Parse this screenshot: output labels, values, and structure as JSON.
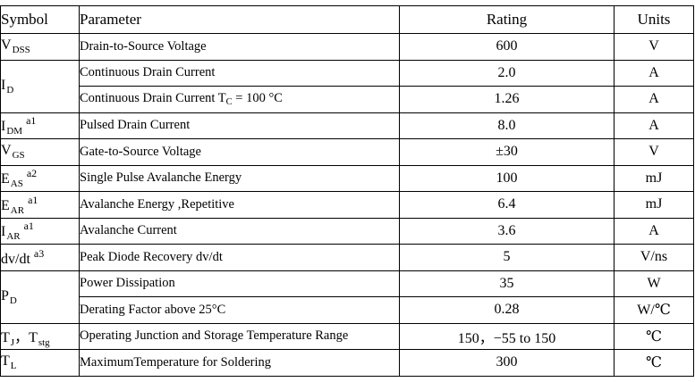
{
  "table": {
    "headers": {
      "symbol": "Symbol",
      "parameter": "Parameter",
      "rating": "Rating",
      "units": "Units"
    },
    "rows": [
      {
        "sym": "V",
        "sub": "DSS",
        "sup": "",
        "param": "Drain-to-Source Voltage",
        "rating": "600",
        "unit": "V"
      },
      {
        "sym": "I",
        "sub": "D",
        "sup": "",
        "param": "Continuous Drain Current",
        "rating": "2.0",
        "unit": "A"
      },
      {
        "param_pre": "Continuous Drain Current T",
        "param_sub": "C",
        "param_post": " = 100 °C",
        "rating": "1.26",
        "unit": "A"
      },
      {
        "sym": "I",
        "sub": "DM",
        "sup": "a1",
        "param": "Pulsed Drain Current",
        "rating": "8.0",
        "unit": "A"
      },
      {
        "sym": "V",
        "sub": "GS",
        "sup": "",
        "param": "Gate-to-Source Voltage",
        "rating": "±30",
        "unit": "V"
      },
      {
        "sym": "E",
        "sub": "AS",
        "sup": "a2",
        "param": "Single Pulse Avalanche Energy",
        "rating": "100",
        "unit": "mJ"
      },
      {
        "sym": "E",
        "sub": "AR",
        "sup": "a1",
        "param": "Avalanche Energy ,Repetitive",
        "rating": "6.4",
        "unit": "mJ"
      },
      {
        "sym": "I",
        "sub": "AR",
        "sup": "a1",
        "param": "Avalanche Current",
        "rating": "3.6",
        "unit": "A"
      },
      {
        "sym": "dv/dt",
        "sub": "",
        "sup": "a3",
        "param": "Peak Diode Recovery dv/dt",
        "rating": "5",
        "unit": "V/ns"
      },
      {
        "sym": "P",
        "sub": "D",
        "sup": "",
        "param": "Power Dissipation",
        "rating": "35",
        "unit": "W"
      },
      {
        "param": "Derating Factor above 25°C",
        "rating": "0.28",
        "unit": "W/℃"
      },
      {
        "sym": "T",
        "sub": "J",
        "sym2": "，T",
        "sub2": "stg",
        "param": "Operating Junction and Storage Temperature Range",
        "rating": "150，−55 to 150",
        "unit": "℃"
      },
      {
        "sym": "T",
        "sub": "L",
        "sup": "",
        "param": "MaximumTemperature for Soldering",
        "rating": "300",
        "unit": "℃"
      }
    ]
  }
}
